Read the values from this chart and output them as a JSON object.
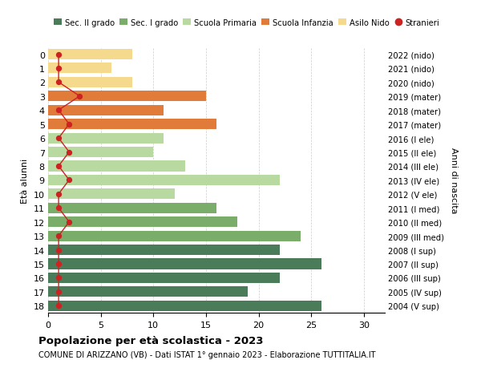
{
  "ages": [
    0,
    1,
    2,
    3,
    4,
    5,
    6,
    7,
    8,
    9,
    10,
    11,
    12,
    13,
    14,
    15,
    16,
    17,
    18
  ],
  "years": [
    "2022 (nido)",
    "2021 (nido)",
    "2020 (nido)",
    "2019 (mater)",
    "2018 (mater)",
    "2017 (mater)",
    "2016 (I ele)",
    "2015 (II ele)",
    "2014 (III ele)",
    "2013 (IV ele)",
    "2012 (V ele)",
    "2011 (I med)",
    "2010 (II med)",
    "2009 (III med)",
    "2008 (I sup)",
    "2007 (II sup)",
    "2006 (III sup)",
    "2005 (IV sup)",
    "2004 (V sup)"
  ],
  "values": [
    8,
    6,
    8,
    15,
    11,
    16,
    11,
    10,
    13,
    22,
    12,
    16,
    18,
    24,
    22,
    26,
    22,
    19,
    26
  ],
  "stranieri": [
    1,
    1,
    1,
    3,
    1,
    2,
    1,
    2,
    1,
    2,
    1,
    1,
    2,
    1,
    1,
    1,
    1,
    1,
    1
  ],
  "bar_colors": [
    "#f5d98c",
    "#f5d98c",
    "#f5d98c",
    "#e07b39",
    "#e07b39",
    "#e07b39",
    "#b8d9a0",
    "#b8d9a0",
    "#b8d9a0",
    "#b8d9a0",
    "#b8d9a0",
    "#7aad6a",
    "#7aad6a",
    "#7aad6a",
    "#4a7c59",
    "#4a7c59",
    "#4a7c59",
    "#4a7c59",
    "#4a7c59"
  ],
  "legend_labels": [
    "Sec. II grado",
    "Sec. I grado",
    "Scuola Primaria",
    "Scuola Infanzia",
    "Asilo Nido",
    "Stranieri"
  ],
  "legend_colors": [
    "#4a7c59",
    "#7aad6a",
    "#b8d9a0",
    "#e07b39",
    "#f5d98c",
    "#cc2222"
  ],
  "stranieri_color": "#cc2222",
  "title_bold": "Popolazione per età scolastica - 2023",
  "subtitle": "COMUNE DI ARIZZANO (VB) - Dati ISTAT 1° gennaio 2023 - Elaborazione TUTTITALIA.IT",
  "ylabel_left": "Età alunni",
  "ylabel_right": "Anni di nascita",
  "xlim": [
    0,
    32
  ],
  "background_color": "#ffffff",
  "grid_color": "#cccccc"
}
